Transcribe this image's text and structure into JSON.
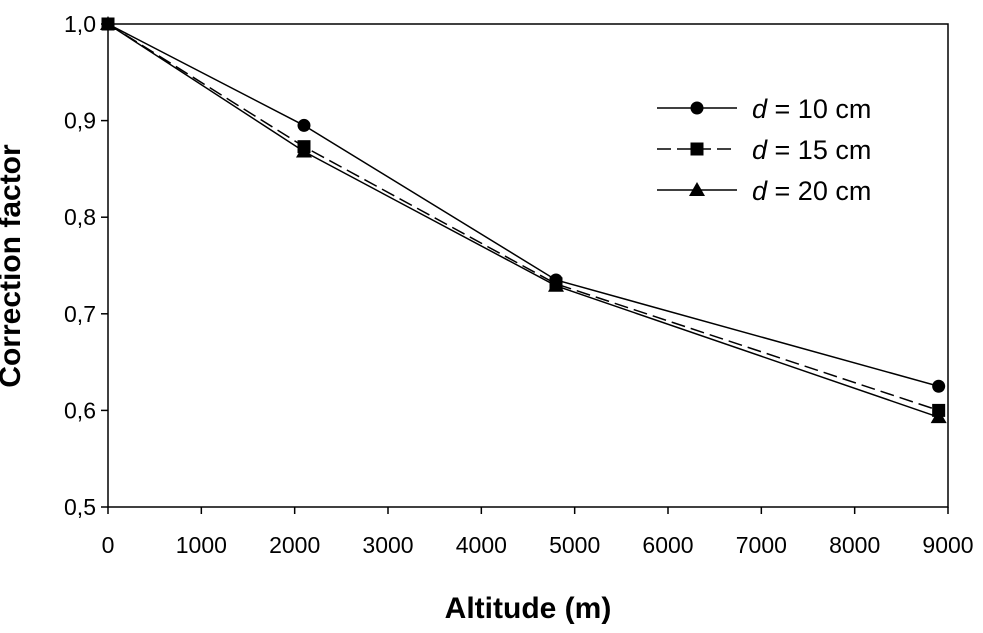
{
  "chart_data": {
    "type": "line",
    "title": "",
    "xlabel": "Altitude (m)",
    "ylabel": "Correction factor",
    "xlim": [
      0,
      9000
    ],
    "ylim": [
      0.5,
      1.0
    ],
    "x_ticks": [
      0,
      1000,
      2000,
      3000,
      4000,
      5000,
      6000,
      7000,
      8000,
      9000
    ],
    "x_tick_labels": [
      "0",
      "1000",
      "2000",
      "3000",
      "4000",
      "5000",
      "6000",
      "7000",
      "8000",
      "9000"
    ],
    "y_ticks": [
      0.5,
      0.6,
      0.7,
      0.8,
      0.9,
      1.0
    ],
    "y_tick_labels": [
      "0,5",
      "0,6",
      "0,7",
      "0,8",
      "0,9",
      "1,0"
    ],
    "grid": false,
    "legend_position": "top-right",
    "series": [
      {
        "name_var": "d",
        "name_rest": " = 10 cm",
        "marker": "circle",
        "line_style": "solid",
        "x": [
          0,
          2100,
          4800,
          8900
        ],
        "y": [
          1.0,
          0.895,
          0.735,
          0.625
        ]
      },
      {
        "name_var": "d",
        "name_rest": " = 15 cm",
        "marker": "square",
        "line_style": "dashed",
        "x": [
          0,
          2100,
          4800,
          8900
        ],
        "y": [
          1.0,
          0.873,
          0.731,
          0.6
        ]
      },
      {
        "name_var": "d",
        "name_rest": " = 20 cm",
        "marker": "triangle",
        "line_style": "solid",
        "x": [
          0,
          2100,
          4800,
          8900
        ],
        "y": [
          1.0,
          0.868,
          0.729,
          0.593
        ]
      }
    ]
  }
}
